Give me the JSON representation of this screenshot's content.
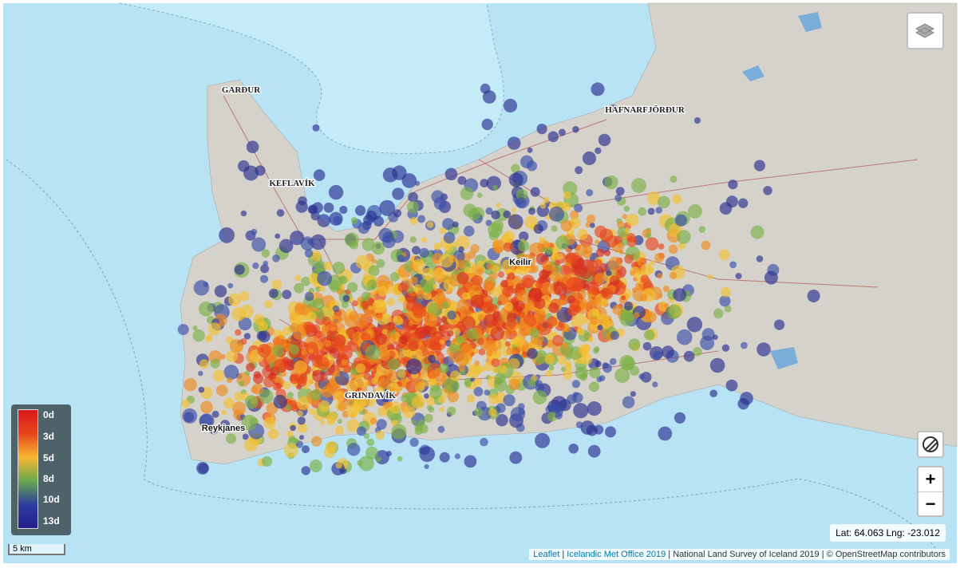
{
  "places": [
    "GARÐUR",
    "KEFLAVÍK",
    "HAFNARFJÖRÐUR",
    "Keilir",
    "GRINDAVÍK",
    "Reykjanes"
  ],
  "legend": [
    "0d",
    "3d",
    "5d",
    "8d",
    "10d",
    "13d"
  ],
  "scale": "5 km",
  "zoom": {
    "in": "+",
    "out": "−"
  },
  "coordinates": "Lat: 64.063 Lng: -23.012",
  "attribution": {
    "links": [
      "Leaflet",
      "Icelandic Met Office 2019"
    ],
    "text": [
      "National Land Survey of Iceland 2019",
      "© OpenStreetMap contributors"
    ],
    "separator": "|"
  }
}
